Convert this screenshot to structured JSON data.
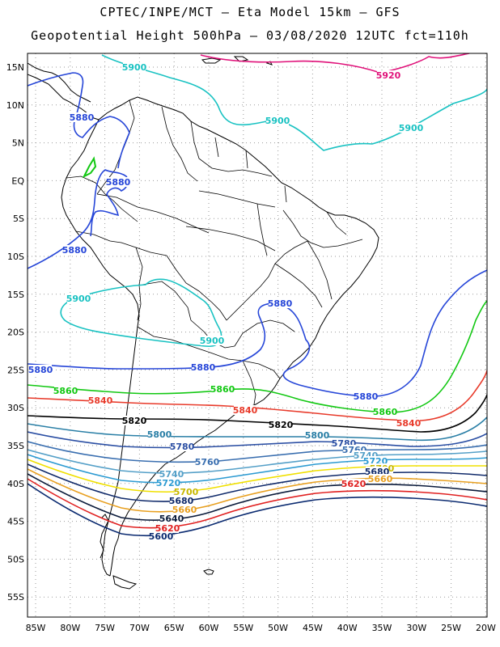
{
  "title": {
    "line1": "CPTEC/INPE/MCT –  Eta Model 15km – GFS",
    "line2": "Geopotential Height 500hPa – 03/08/2020 12UTC fct=110h"
  },
  "axes": {
    "lon_labels": [
      "85W",
      "80W",
      "75W",
      "70W",
      "65W",
      "60W",
      "55W",
      "50W",
      "45W",
      "40W",
      "35W",
      "30W",
      "25W",
      "20W"
    ],
    "lat_labels": [
      "15N",
      "10N",
      "5N",
      "EQ",
      "5S",
      "10S",
      "15S",
      "20S",
      "25S",
      "30S",
      "35S",
      "40S",
      "45S",
      "50S",
      "55S"
    ]
  },
  "colors": {
    "c5920": "#e0127a",
    "c5900": "#19c2c2",
    "c5880": "#2646d8",
    "c5860": "#12c812",
    "c5840": "#e83a2a",
    "c5820": "#000000",
    "c5800": "#2a7fa6",
    "c5780": "#2a4ea3",
    "c5760": "#3a6fb0",
    "c5740": "#55a0c8",
    "c5720": "#2d9bd2",
    "c5700": "#f0e000",
    "c5680": "#102a6a",
    "c5660": "#e8a020",
    "c5640": "#0a1a3a",
    "c5620": "#e02020",
    "c5600": "#0a2a70",
    "grid": "#9a9a9a",
    "land": "#000000"
  },
  "contour_labels": [
    {
      "text": "5920",
      "color": "#e0127a"
    },
    {
      "text": "5900",
      "color": "#19c2c2"
    },
    {
      "text": "5900",
      "color": "#19c2c2"
    },
    {
      "text": "5900",
      "color": "#19c2c2"
    },
    {
      "text": "5900",
      "color": "#19c2c2"
    },
    {
      "text": "5900",
      "color": "#19c2c2"
    },
    {
      "text": "5880",
      "color": "#2646d8"
    },
    {
      "text": "5880",
      "color": "#2646d8"
    },
    {
      "text": "5880",
      "color": "#2646d8"
    },
    {
      "text": "5880",
      "color": "#2646d8"
    },
    {
      "text": "5880",
      "color": "#2646d8"
    },
    {
      "text": "5880",
      "color": "#2646d8"
    },
    {
      "text": "5880",
      "color": "#2646d8"
    },
    {
      "text": "5860",
      "color": "#12c812"
    },
    {
      "text": "5860",
      "color": "#12c812"
    },
    {
      "text": "5860",
      "color": "#12c812"
    },
    {
      "text": "5840",
      "color": "#e83a2a"
    },
    {
      "text": "5840",
      "color": "#e83a2a"
    },
    {
      "text": "5840",
      "color": "#e83a2a"
    },
    {
      "text": "5820",
      "color": "#000000"
    },
    {
      "text": "5820",
      "color": "#000000"
    },
    {
      "text": "5800",
      "color": "#2a7fa6"
    },
    {
      "text": "5800",
      "color": "#2a7fa6"
    },
    {
      "text": "5780",
      "color": "#2a4ea3"
    },
    {
      "text": "5780",
      "color": "#2a4ea3"
    },
    {
      "text": "5760",
      "color": "#3a6fb0"
    },
    {
      "text": "5760",
      "color": "#3a6fb0"
    },
    {
      "text": "5740",
      "color": "#55a0c8"
    },
    {
      "text": "5740",
      "color": "#55a0c8"
    },
    {
      "text": "5720",
      "color": "#2d9bd2"
    },
    {
      "text": "5720",
      "color": "#2d9bd2"
    },
    {
      "text": "5700",
      "color": "#c8b800"
    },
    {
      "text": "5700",
      "color": "#c8b800"
    },
    {
      "text": "5680",
      "color": "#102a6a"
    },
    {
      "text": "5680",
      "color": "#102a6a"
    },
    {
      "text": "5660",
      "color": "#e8a020"
    },
    {
      "text": "5660",
      "color": "#e8a020"
    },
    {
      "text": "5640",
      "color": "#0a1a3a"
    },
    {
      "text": "5620",
      "color": "#e02020"
    },
    {
      "text": "5620",
      "color": "#e02020"
    },
    {
      "text": "5600",
      "color": "#0a2a70"
    }
  ]
}
